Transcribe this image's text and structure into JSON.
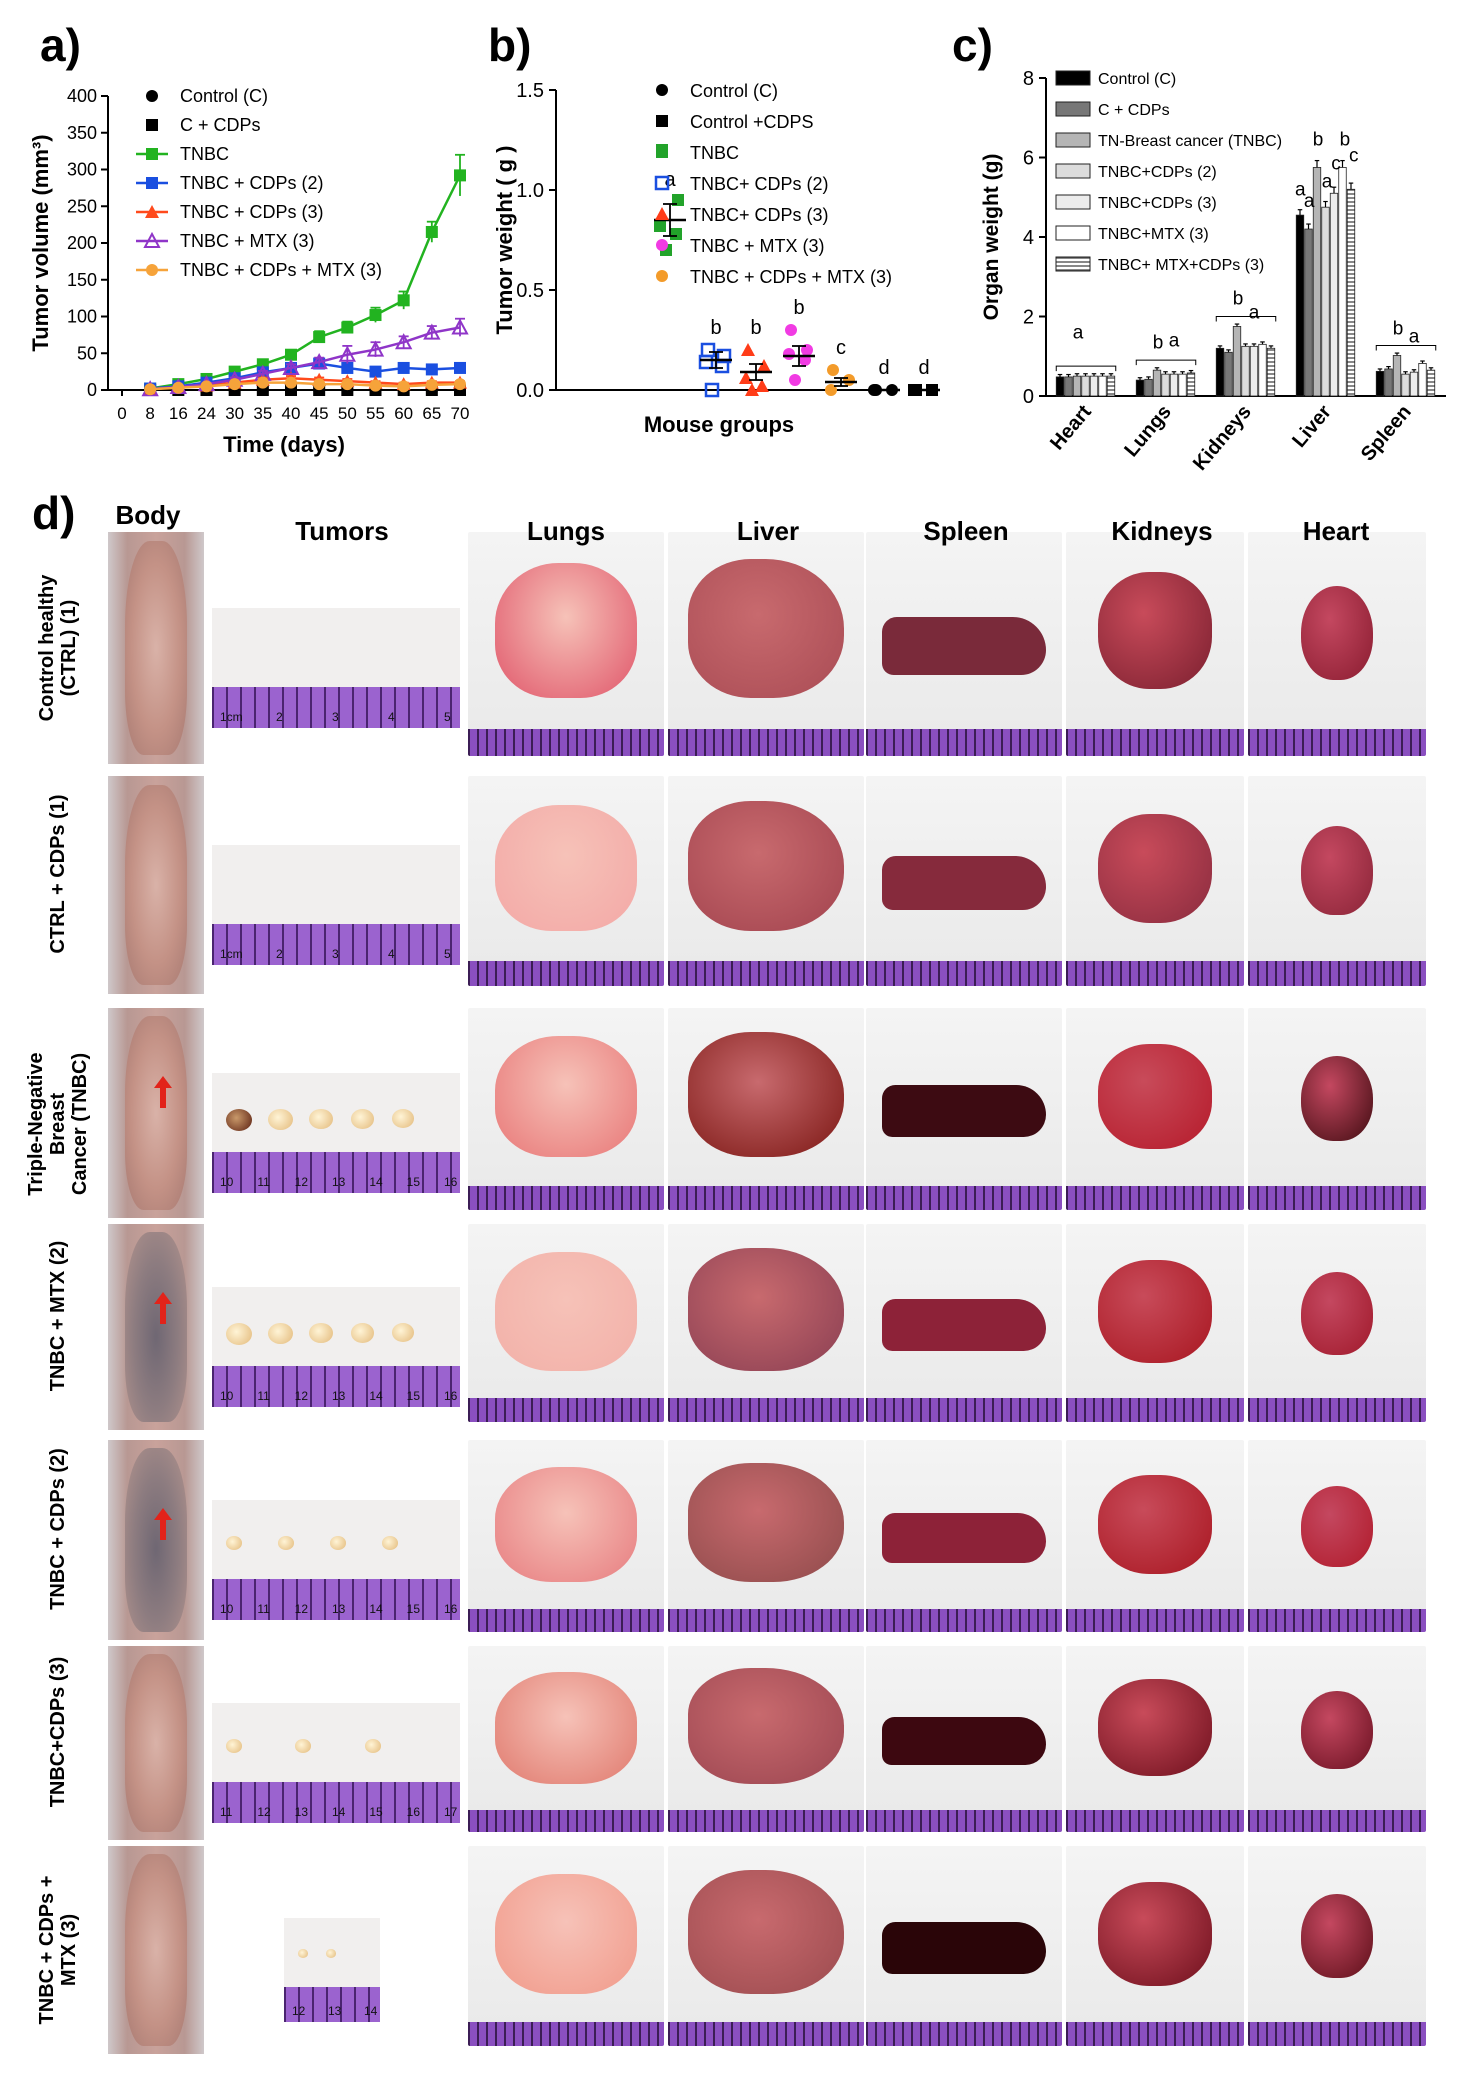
{
  "panels": {
    "a": "a)",
    "b": "b)",
    "c": "c)",
    "d": "d)"
  },
  "chart_data": [
    {
      "type": "line",
      "panel": "a)",
      "xlabel": "Time (days)",
      "ylabel": "Tumor  volume (mm³)",
      "x_ticks": [
        "0",
        "8",
        "16",
        "24",
        "30",
        "35",
        "40",
        "45",
        "50",
        "55",
        "60",
        "65",
        "70"
      ],
      "y_ticks": [
        "0",
        "50",
        "100",
        "150",
        "200",
        "250",
        "300",
        "350",
        "400"
      ],
      "ylim": [
        0,
        400
      ],
      "legend_position": "top-left",
      "series": [
        {
          "name": "Control (C)",
          "color": "#000000",
          "marker": "circle",
          "values": [
            null,
            0,
            0,
            0,
            0,
            0,
            0,
            0,
            0,
            0,
            0,
            0,
            0
          ],
          "err": [
            null,
            0,
            0,
            0,
            0,
            0,
            0,
            0,
            0,
            0,
            0,
            0,
            0
          ]
        },
        {
          "name": "C + CDPs",
          "color": "#000000",
          "marker": "square",
          "values": [
            null,
            0,
            0,
            0,
            0,
            0,
            0,
            0,
            0,
            0,
            0,
            0,
            0
          ],
          "err": [
            null,
            0,
            0,
            0,
            0,
            0,
            0,
            0,
            0,
            0,
            0,
            0,
            0
          ]
        },
        {
          "name": "TNBC",
          "color": "#22b320",
          "marker": "square",
          "values": [
            null,
            2,
            8,
            15,
            25,
            35,
            48,
            72,
            85,
            102,
            122,
            215,
            292
          ],
          "err": [
            null,
            1,
            2,
            3,
            4,
            5,
            6,
            8,
            8,
            10,
            12,
            14,
            28
          ]
        },
        {
          "name": "TNBC + CDPs (2)",
          "color": "#1a4fe0",
          "marker": "square",
          "values": [
            null,
            2,
            5,
            10,
            16,
            24,
            30,
            36,
            30,
            25,
            30,
            28,
            30
          ],
          "err": [
            null,
            1,
            2,
            2,
            3,
            3,
            4,
            5,
            4,
            4,
            5,
            4,
            5
          ]
        },
        {
          "name": "TNBC + CDPs (3)",
          "color": "#ff4a1c",
          "marker": "triangle",
          "values": [
            null,
            1,
            4,
            6,
            10,
            14,
            16,
            14,
            12,
            10,
            8,
            10,
            10
          ],
          "err": [
            null,
            1,
            1,
            2,
            2,
            3,
            3,
            3,
            3,
            2,
            2,
            2,
            2
          ]
        },
        {
          "name": "TNBC + MTX (3)",
          "color": "#8f35c8",
          "marker": "triangle-open",
          "values": [
            null,
            1,
            4,
            8,
            14,
            22,
            30,
            38,
            48,
            55,
            65,
            78,
            85
          ],
          "err": [
            null,
            1,
            2,
            2,
            3,
            4,
            5,
            6,
            12,
            10,
            8,
            9,
            12
          ]
        },
        {
          "name": "TNBC + CDPs + MTX (3)",
          "color": "#f6a33a",
          "marker": "circle",
          "values": [
            null,
            1,
            3,
            5,
            8,
            10,
            10,
            8,
            8,
            6,
            5,
            7,
            8
          ],
          "err": [
            null,
            1,
            1,
            1,
            2,
            2,
            2,
            2,
            2,
            2,
            1,
            2,
            2
          ]
        }
      ]
    },
    {
      "type": "scatter",
      "panel": "b)",
      "xlabel": "Mouse groups",
      "ylabel": "Tumor  weight ( g )",
      "y_ticks": [
        "0.0",
        "0.5",
        "1.0",
        "1.5"
      ],
      "ylim": [
        0,
        1.5
      ],
      "legend_position": "top-right",
      "groups": [
        {
          "name": "Control (C)",
          "color": "#000000",
          "marker": "circle",
          "points": [],
          "mean": null,
          "letter": ""
        },
        {
          "name": "Control +CDPS",
          "color": "#000000",
          "marker": "square",
          "points": [],
          "mean": null,
          "letter": ""
        },
        {
          "name": "TNBC",
          "color": "#22a32a",
          "marker": "square",
          "points": [
            1.2,
            0.95,
            0.82,
            0.78,
            0.7
          ],
          "mean": 0.85,
          "sem": 0.08,
          "letter": "a"
        },
        {
          "name": "TNBC+ CDPs (2)",
          "color": "#1a4fe0",
          "marker": "square-open",
          "points": [
            0.2,
            0.17,
            0.14,
            0.12,
            0.0
          ],
          "mean": 0.15,
          "sem": 0.04,
          "letter": "b"
        },
        {
          "name": "TNBC+ CDPs (3)",
          "color": "#ff3c18",
          "marker": "triangle",
          "points": [
            0.2,
            0.12,
            0.06,
            0.02,
            0.0
          ],
          "mean": 0.09,
          "sem": 0.04,
          "letter": "b"
        },
        {
          "name": "TNBC + MTX (3)",
          "color": "#f13be3",
          "marker": "circle",
          "points": [
            0.3,
            0.2,
            0.18,
            0.15,
            0.05
          ],
          "mean": 0.17,
          "sem": 0.05,
          "letter": "b"
        },
        {
          "name": "TNBC + CDPs + MTX (3)",
          "color": "#f39b2a",
          "marker": "circle",
          "points": [
            0.1,
            0.05,
            0.0
          ],
          "mean": 0.04,
          "sem": 0.02,
          "letter": "c"
        },
        {
          "name": "",
          "color": "#000000",
          "marker": "circle",
          "points": [
            0.0,
            0.0,
            0.0
          ],
          "mean": 0.0,
          "sem": 0,
          "letter": "d"
        },
        {
          "name": "",
          "color": "#000000",
          "marker": "square",
          "points": [
            0.0,
            0.0,
            0.0
          ],
          "mean": 0.0,
          "sem": 0,
          "letter": "d"
        }
      ]
    },
    {
      "type": "bar",
      "panel": "c)",
      "ylabel": "Organ weight (g)",
      "categories": [
        "Heart",
        "Lungs",
        "Kidneys",
        "Liver",
        "Spleen"
      ],
      "y_ticks": [
        "0",
        "2",
        "4",
        "6",
        "8"
      ],
      "ylim": [
        0,
        8
      ],
      "legend_position": "top-left",
      "series": [
        {
          "name": "Control (C)",
          "fill": "#000000",
          "values": [
            0.48,
            0.4,
            1.2,
            4.55,
            0.62
          ]
        },
        {
          "name": "C + CDPs",
          "fill": "#777777",
          "values": [
            0.48,
            0.42,
            1.1,
            4.2,
            0.68
          ]
        },
        {
          "name": "TN-Breast cancer (TNBC)",
          "fill": "#b5b5b5",
          "values": [
            0.5,
            0.65,
            1.75,
            5.75,
            1.02
          ]
        },
        {
          "name": "TNBC+CDPs (2)",
          "fill": "#dcdcdc",
          "values": [
            0.5,
            0.55,
            1.25,
            4.75,
            0.55
          ]
        },
        {
          "name": "TNBC+CDPs (3)",
          "fill": "#ececec",
          "values": [
            0.5,
            0.55,
            1.25,
            5.1,
            0.6
          ]
        },
        {
          "name": "TNBC+MTX (3)",
          "fill": "#ffffff",
          "values": [
            0.5,
            0.55,
            1.3,
            5.75,
            0.82
          ]
        },
        {
          "name": "TNBC+ MTX+CDPs (3)",
          "fill": "hatch",
          "values": [
            0.5,
            0.58,
            1.2,
            5.2,
            0.65
          ]
        }
      ],
      "annotations": [
        {
          "text": "a",
          "category": "Heart",
          "y": 1.45
        },
        {
          "text": "b",
          "category": "Lungs",
          "y": 1.2
        },
        {
          "text": "a",
          "category": "Lungs",
          "y": 1.25
        },
        {
          "text": "b",
          "category": "Kidneys",
          "y": 2.3
        },
        {
          "text": "a",
          "category": "Kidneys",
          "y": 1.95
        },
        {
          "text": "a",
          "category": "Liver",
          "y": 5.05
        },
        {
          "text": "a",
          "category": "Liver",
          "y": 4.75
        },
        {
          "text": "b",
          "category": "Liver",
          "y": 6.3
        },
        {
          "text": "a",
          "category": "Liver",
          "y": 5.25
        },
        {
          "text": "c",
          "category": "Liver",
          "y": 5.7
        },
        {
          "text": "b",
          "category": "Liver",
          "y": 6.3
        },
        {
          "text": "c",
          "category": "Liver",
          "y": 5.9
        },
        {
          "text": "b",
          "category": "Spleen",
          "y": 1.55
        },
        {
          "text": "a",
          "category": "Spleen",
          "y": 1.35
        }
      ]
    }
  ],
  "panel_d": {
    "columns": [
      "Body",
      "Tumors",
      "Lungs",
      "Liver",
      "Spleen",
      "Kidneys",
      "Heart"
    ],
    "rows": [
      {
        "label": "Control healthy\n(CTRL) (1)",
        "body_dark": false,
        "red_arrow": false,
        "tumors": 0,
        "ruler_text": [
          "1cm",
          "2",
          "3",
          "4",
          "5"
        ]
      },
      {
        "label": "CTRL  + CDPs (1)",
        "body_dark": false,
        "red_arrow": false,
        "tumors": 0,
        "ruler_text": [
          "1cm",
          "2",
          "3",
          "4",
          "5"
        ]
      },
      {
        "label": "Triple-Negative Breast\nCancer  (TNBC)",
        "body_dark": false,
        "red_arrow": true,
        "tumors": 5,
        "ruler_text": [
          "10",
          "11",
          "12",
          "13",
          "14",
          "15",
          "16"
        ]
      },
      {
        "label": "TNBC + MTX (2)",
        "body_dark": true,
        "red_arrow": true,
        "tumors": 5,
        "ruler_text": [
          "10",
          "11",
          "12",
          "13",
          "14",
          "15",
          "16"
        ]
      },
      {
        "label": "TNBC + CDPs (2)",
        "body_dark": true,
        "red_arrow": true,
        "tumors": 4,
        "ruler_text": [
          "10",
          "11",
          "12",
          "13",
          "14",
          "15",
          "16"
        ]
      },
      {
        "label": "TNBC+CDPs (3)",
        "body_dark": false,
        "red_arrow": false,
        "tumors": 3,
        "ruler_text": [
          "11",
          "12",
          "13",
          "14",
          "15",
          "16",
          "17"
        ]
      },
      {
        "label": "TNBC + CDPs +\nMTX (3)",
        "body_dark": false,
        "red_arrow": false,
        "tumors": 2,
        "ruler_text": [
          "12",
          "13",
          "14"
        ]
      }
    ]
  }
}
